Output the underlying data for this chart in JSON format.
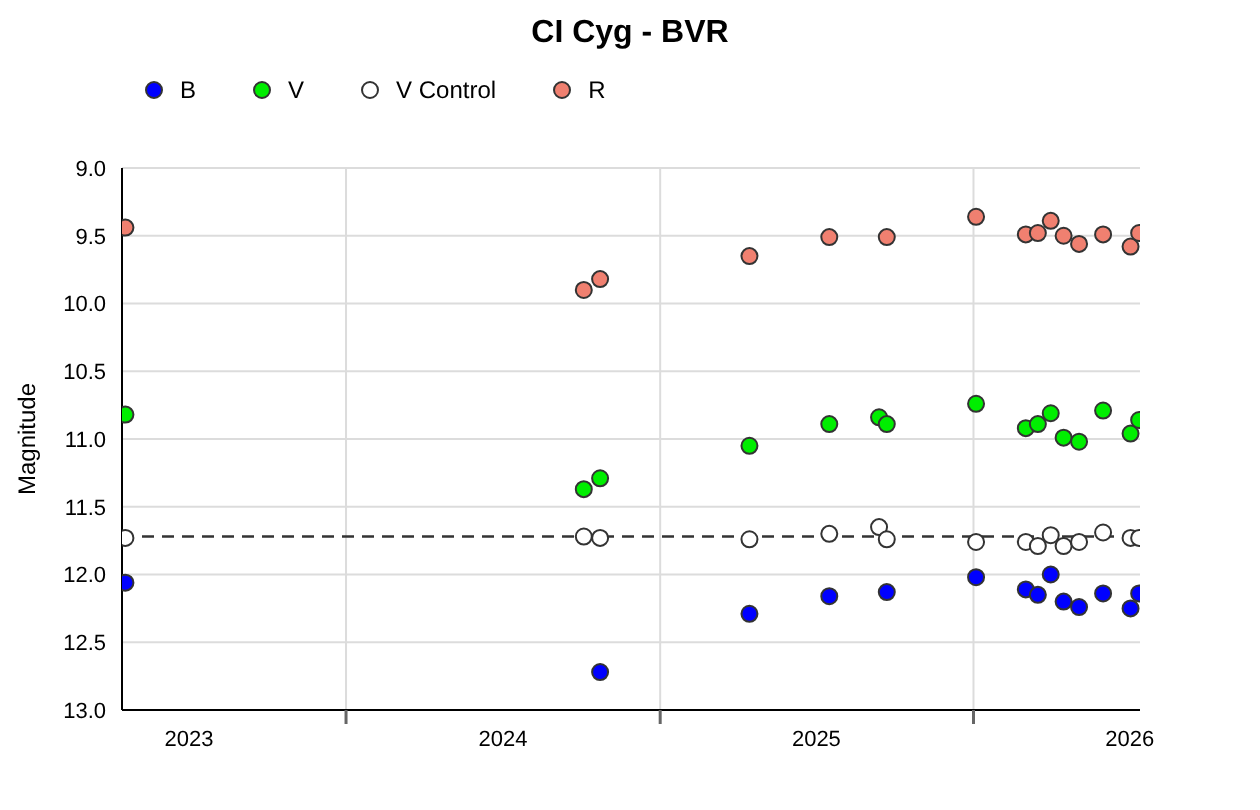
{
  "chart_data": {
    "type": "scatter",
    "title": "CI Cyg - BVR",
    "ylabel": "Magnitude",
    "marker": "circle",
    "grid": true,
    "legend": "top left",
    "xlim": [
      "2023-04-15",
      "2026-07-14"
    ],
    "xticks": [
      {
        "value": "2023-07-02",
        "label": "2023"
      },
      {
        "value": "2024-01-01",
        "label": null
      },
      {
        "value": "2024-07-02",
        "label": "2024"
      },
      {
        "value": "2025-01-01",
        "label": null
      },
      {
        "value": "2025-07-02",
        "label": "2025"
      },
      {
        "value": "2026-01-01",
        "label": null
      },
      {
        "value": "2026-07-02",
        "label": "2026"
      }
    ],
    "ylim": [
      13.0,
      9.0
    ],
    "yticks": [
      {
        "value": 13,
        "label": "13.0"
      },
      {
        "value": 12.5,
        "label": "12.5"
      },
      {
        "value": 12,
        "label": "12.0"
      },
      {
        "value": 11.5,
        "label": "11.5"
      },
      {
        "value": 11,
        "label": "11.0"
      },
      {
        "value": 10.5,
        "label": "10.5"
      },
      {
        "value": 10,
        "label": "10.0"
      },
      {
        "value": 9.5,
        "label": "9.5"
      },
      {
        "value": 9,
        "label": "9.0"
      }
    ],
    "ref_lines": [
      {
        "axis": "y",
        "value": 11.72,
        "label": null,
        "color": "#333333",
        "line_style": "dashed"
      }
    ],
    "series": [
      {
        "name": "B",
        "color": "#0000ff",
        "x": [
          "2023-04-19",
          "2024-10-23",
          "2025-04-15",
          "2025-07-17",
          "2025-09-22",
          "2026-01-04",
          "2026-03-03",
          "2026-03-17",
          "2026-04-01",
          "2026-04-16",
          "2026-05-04",
          "2026-06-01",
          "2026-07-03",
          "2026-07-13"
        ],
        "values": [
          12.06,
          12.72,
          12.29,
          12.16,
          12.13,
          12.02,
          12.11,
          12.15,
          12.0,
          12.2,
          12.24,
          12.14,
          12.25,
          12.14
        ]
      },
      {
        "name": "V",
        "color": "#00ee00",
        "x": [
          "2023-04-19",
          "2024-10-04",
          "2024-10-23",
          "2025-04-15",
          "2025-07-17",
          "2025-09-13",
          "2025-09-22",
          "2026-01-04",
          "2026-03-03",
          "2026-03-17",
          "2026-04-01",
          "2026-04-16",
          "2026-05-04",
          "2026-06-01",
          "2026-07-03",
          "2026-07-13"
        ],
        "values": [
          10.82,
          11.37,
          11.29,
          11.05,
          10.89,
          10.84,
          10.89,
          10.74,
          10.92,
          10.89,
          10.81,
          10.99,
          11.02,
          10.79,
          10.96,
          10.86
        ]
      },
      {
        "name": "V Control",
        "color": "#ffffff",
        "x": [
          "2023-04-19",
          "2024-10-04",
          "2024-10-23",
          "2025-04-15",
          "2025-07-17",
          "2025-09-13",
          "2025-09-22",
          "2026-01-04",
          "2026-03-03",
          "2026-03-17",
          "2026-04-01",
          "2026-04-16",
          "2026-05-04",
          "2026-06-01",
          "2026-07-03",
          "2026-07-13"
        ],
        "values": [
          11.73,
          11.72,
          11.73,
          11.74,
          11.7,
          11.65,
          11.74,
          11.76,
          11.76,
          11.79,
          11.71,
          11.79,
          11.76,
          11.69,
          11.73,
          11.73
        ]
      },
      {
        "name": "R",
        "color": "#f08070",
        "x": [
          "2023-04-19",
          "2024-10-04",
          "2024-10-23",
          "2025-04-15",
          "2025-07-17",
          "2025-09-22",
          "2026-01-04",
          "2026-03-03",
          "2026-03-17",
          "2026-04-01",
          "2026-04-16",
          "2026-05-04",
          "2026-06-01",
          "2026-07-03",
          "2026-07-13"
        ],
        "values": [
          9.44,
          9.9,
          9.82,
          9.65,
          9.51,
          9.51,
          9.36,
          9.49,
          9.48,
          9.39,
          9.5,
          9.56,
          9.49,
          9.58,
          9.48
        ]
      }
    ]
  }
}
